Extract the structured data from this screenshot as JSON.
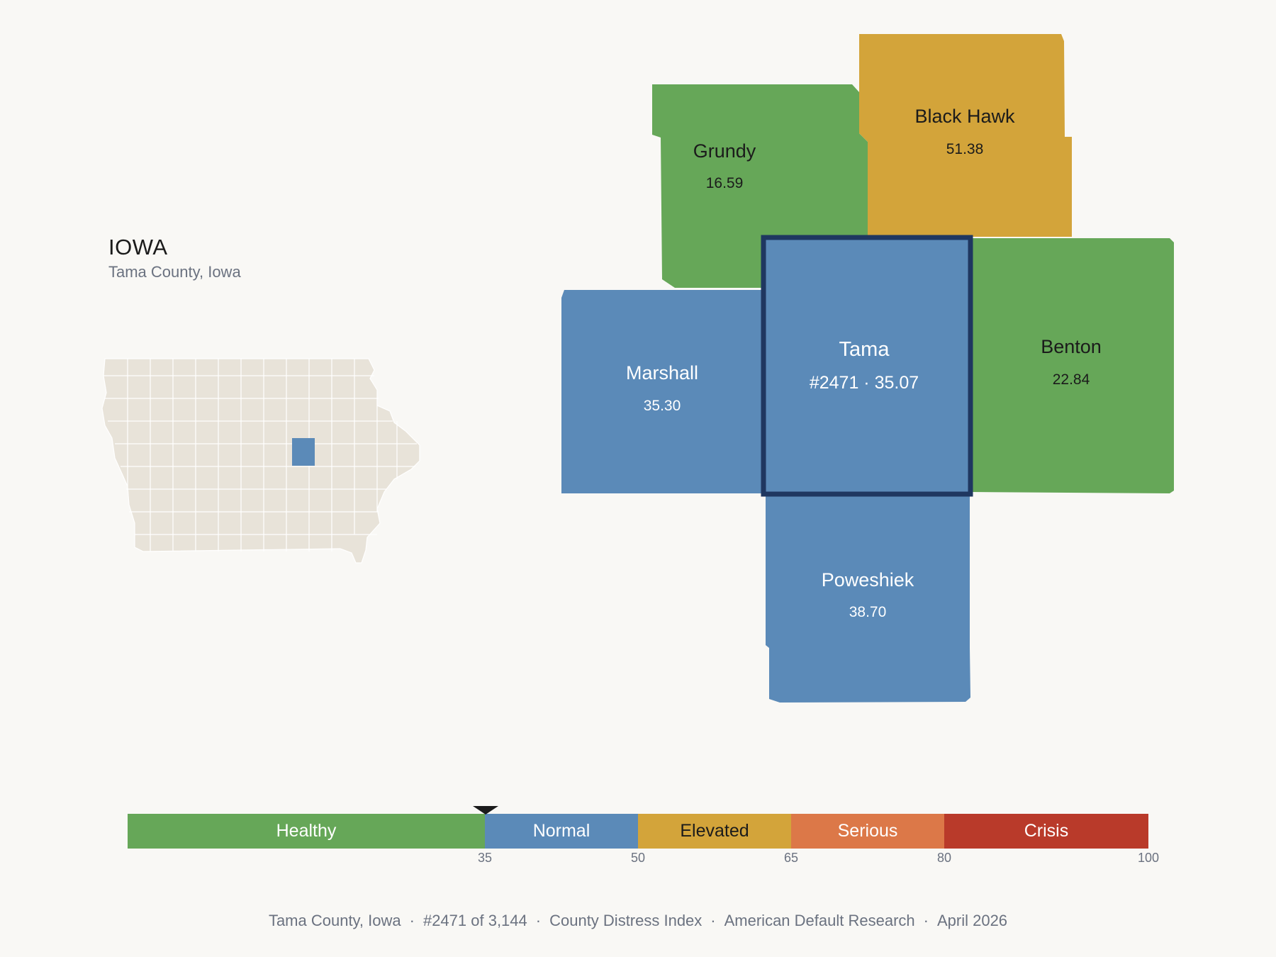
{
  "header": {
    "state": "IOWA",
    "subtitle": "Tama County, Iowa"
  },
  "colors": {
    "healthy": "#66a758",
    "normal": "#5b8ab8",
    "elevated": "#d3a43a",
    "serious": "#dc7848",
    "crisis": "#b93a2a",
    "highlight_border": "#1f3760",
    "inset_fill": "#e8e3d9"
  },
  "counties": [
    {
      "id": "grundy",
      "name": "Grundy",
      "value": "16.59",
      "category": "healthy"
    },
    {
      "id": "black-hawk",
      "name": "Black Hawk",
      "value": "51.38",
      "category": "elevated"
    },
    {
      "id": "marshall",
      "name": "Marshall",
      "value": "35.30",
      "category": "normal"
    },
    {
      "id": "tama",
      "name": "Tama",
      "value": "#2471 · 35.07",
      "category": "normal",
      "selected": true
    },
    {
      "id": "benton",
      "name": "Benton",
      "value": "22.84",
      "category": "healthy"
    },
    {
      "id": "poweshiek",
      "name": "Poweshiek",
      "value": "38.70",
      "category": "normal"
    }
  ],
  "scale": {
    "segments": [
      {
        "label": "Healthy",
        "from": 0,
        "to": 35,
        "color": "#66a758",
        "text_color": "#ffffff"
      },
      {
        "label": "Normal",
        "from": 35,
        "to": 50,
        "color": "#5b8ab8",
        "text_color": "#ffffff"
      },
      {
        "label": "Elevated",
        "from": 50,
        "to": 65,
        "color": "#d3a43a",
        "text_color": "#1b1b1b"
      },
      {
        "label": "Serious",
        "from": 65,
        "to": 80,
        "color": "#dc7848",
        "text_color": "#ffffff"
      },
      {
        "label": "Crisis",
        "from": 80,
        "to": 100,
        "color": "#b93a2a",
        "text_color": "#ffffff"
      }
    ],
    "ticks": [
      "35",
      "50",
      "65",
      "80",
      "100"
    ],
    "marker_value": 35.07
  },
  "footer": {
    "county": "Tama County, Iowa",
    "rank": "#2471 of 3,144",
    "index": "County Distress Index",
    "source": "American Default Research",
    "date": "April 2026"
  }
}
